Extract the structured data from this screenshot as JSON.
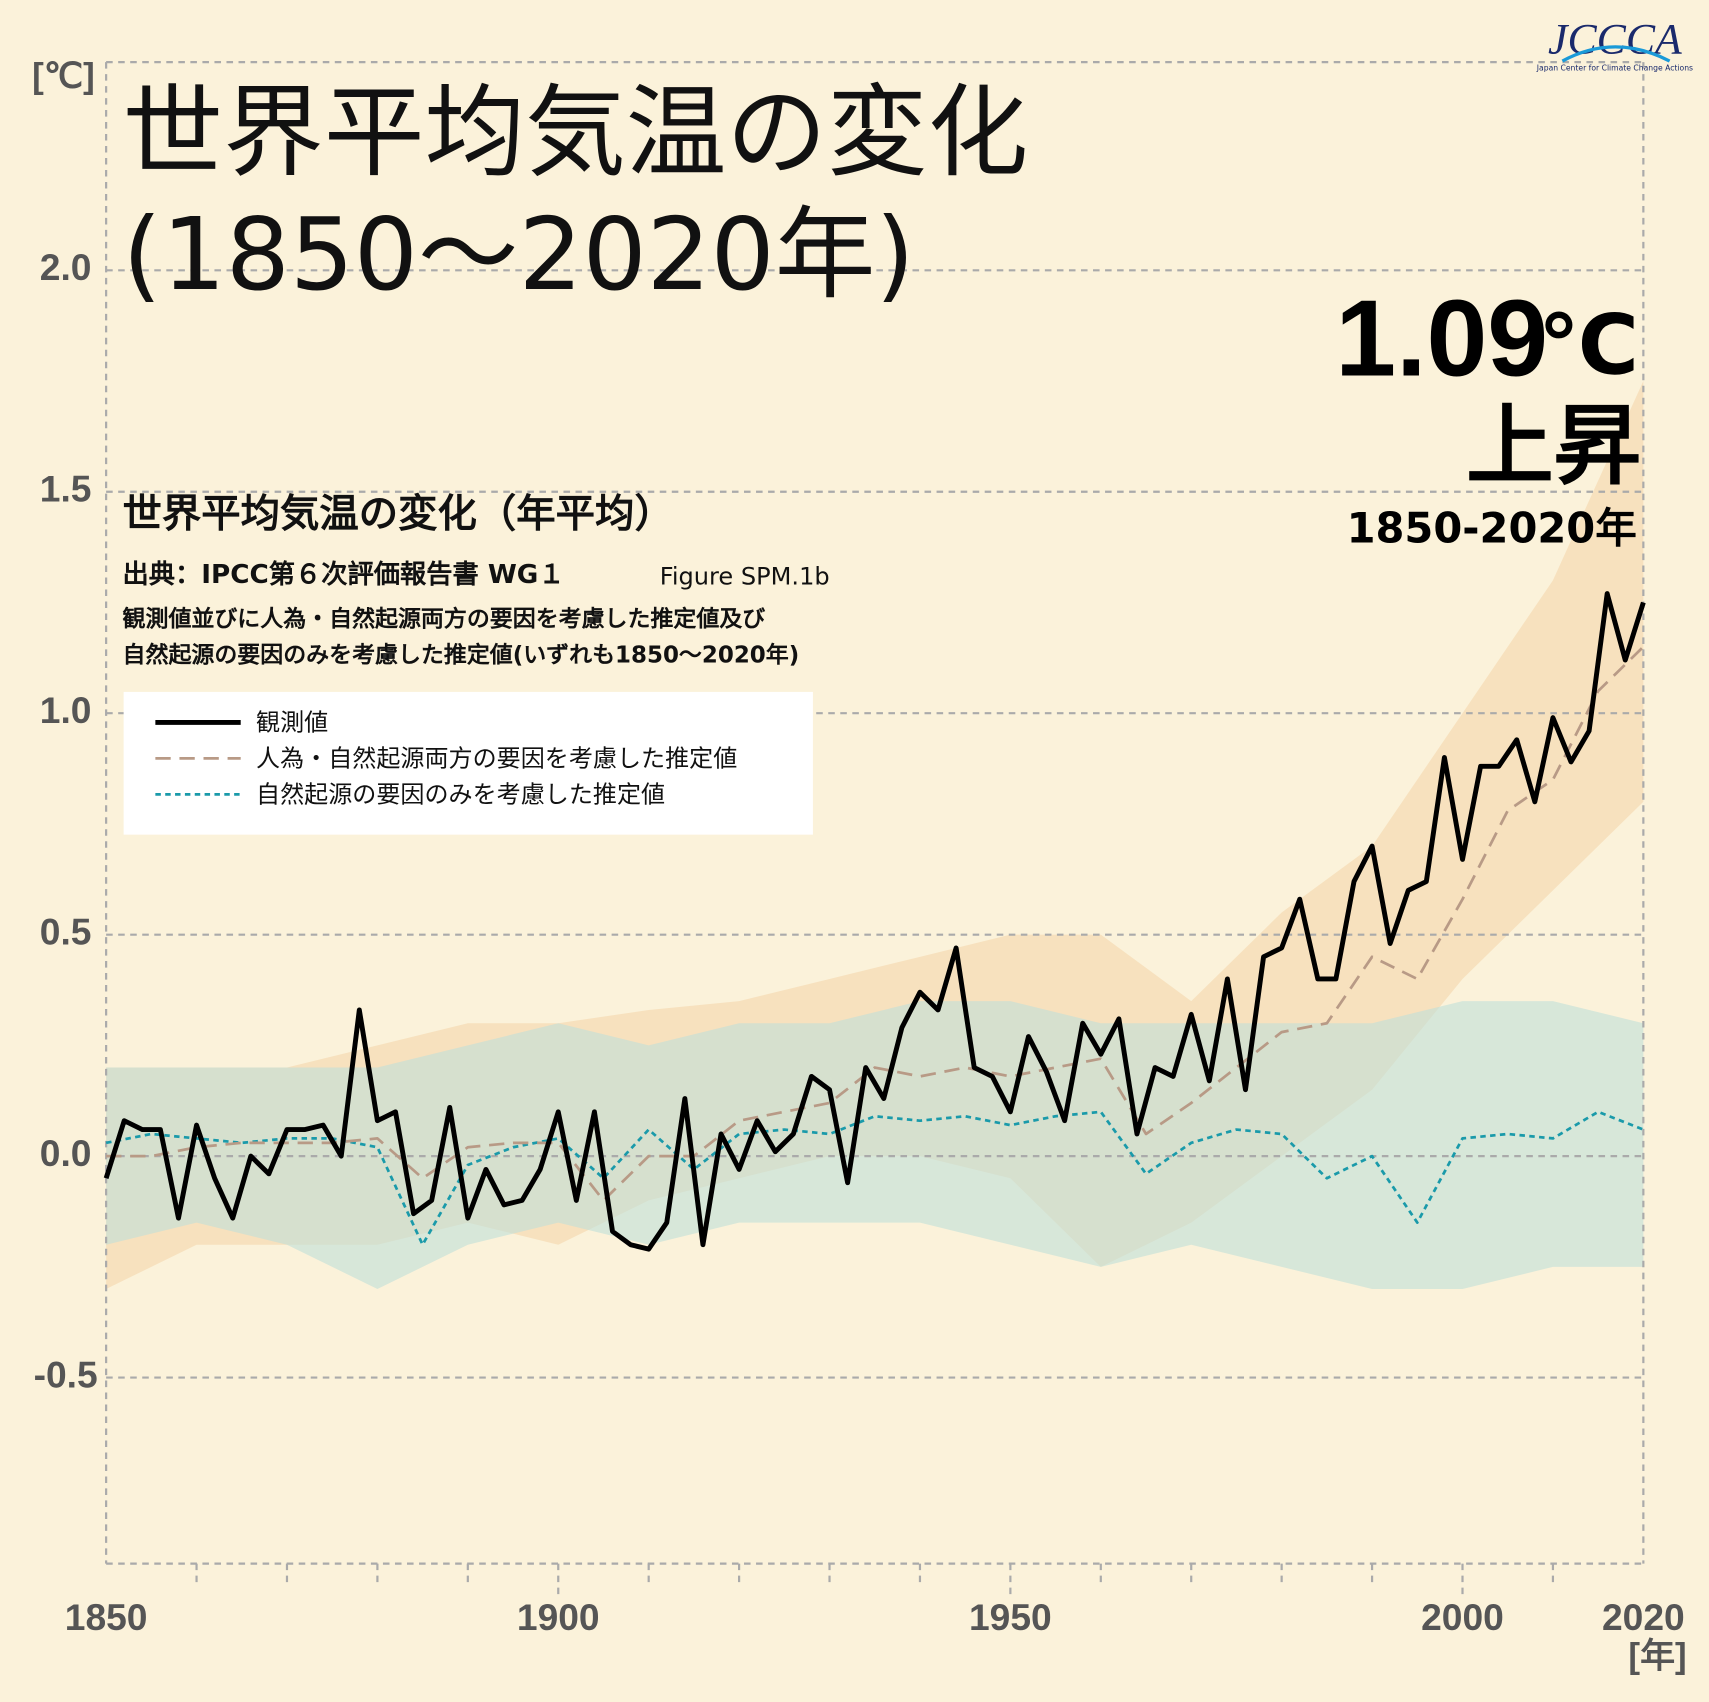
{
  "chart_data": {
    "type": "line",
    "title": "世界平均気温の変化",
    "subtitle": "(1850～2020年)",
    "headline_value": "1.09",
    "headline_unit": "℃",
    "headline_word": "上昇",
    "headline_period": "1850-2020年",
    "inner_title": "世界平均気温の変化（年平均）",
    "source": "出典：IPCC第６次評価報告書 WG１",
    "source_figure": "Figure SPM.1b",
    "description": [
      "観測値並びに人為・自然起源両方の要因を考慮した推定値及び",
      "自然起源の要因のみを考慮した推定値(いずれも1850～2020年)"
    ],
    "y_label": "[℃]",
    "x_label": "[年]",
    "logo": "JCCCA",
    "logo_caption": "Japan Center for Climate Change Actions",
    "xlim": [
      1850,
      2020
    ],
    "xticks": [
      1850,
      1900,
      1950,
      2000,
      2020
    ],
    "xminorticks": [
      1860,
      1870,
      1880,
      1890,
      1910,
      1920,
      1930,
      1940,
      1960,
      1970,
      1980,
      1990,
      2010
    ],
    "ylim": [
      -0.92,
      2.47
    ],
    "yticks": [
      -0.5,
      {
        "value": 0,
        "label": "0.0"
      },
      0.5,
      {
        "value": 1,
        "label": "1.0"
      },
      1.5,
      {
        "value": 2,
        "label": "2.0"
      }
    ],
    "grid": true,
    "x": [
      1850,
      1852,
      1854,
      1856,
      1858,
      1860,
      1862,
      1864,
      1866,
      1868,
      1870,
      1872,
      1874,
      1876,
      1878,
      1880,
      1882,
      1884,
      1886,
      1888,
      1890,
      1892,
      1894,
      1896,
      1898,
      1900,
      1902,
      1904,
      1906,
      1908,
      1910,
      1912,
      1914,
      1916,
      1918,
      1920,
      1922,
      1924,
      1926,
      1928,
      1930,
      1932,
      1934,
      1936,
      1938,
      1940,
      1942,
      1944,
      1946,
      1948,
      1950,
      1952,
      1954,
      1956,
      1958,
      1960,
      1962,
      1964,
      1966,
      1968,
      1970,
      1972,
      1974,
      1976,
      1978,
      1980,
      1982,
      1984,
      1986,
      1988,
      1990,
      1992,
      1994,
      1996,
      1998,
      2000,
      2002,
      2004,
      2006,
      2008,
      2010,
      2012,
      2014,
      2016,
      2018,
      2020
    ],
    "series": [
      {
        "name": "観測値",
        "color": "#000000",
        "style": "solid",
        "values": [
          -0.05,
          0.08,
          0.06,
          0.06,
          -0.14,
          0.07,
          -0.05,
          -0.14,
          0.0,
          -0.04,
          0.06,
          0.06,
          0.07,
          0.0,
          0.33,
          0.08,
          0.1,
          -0.13,
          -0.1,
          0.11,
          -0.14,
          -0.03,
          -0.11,
          -0.1,
          -0.03,
          0.1,
          -0.1,
          0.1,
          -0.17,
          -0.2,
          -0.21,
          -0.15,
          0.13,
          -0.2,
          0.05,
          -0.03,
          0.08,
          0.01,
          0.05,
          0.18,
          0.15,
          -0.06,
          0.2,
          0.13,
          0.29,
          0.37,
          0.33,
          0.47,
          0.2,
          0.18,
          0.1,
          0.27,
          0.19,
          0.08,
          0.3,
          0.23,
          0.31,
          0.05,
          0.2,
          0.18,
          0.32,
          0.17,
          0.4,
          0.15,
          0.45,
          0.47,
          0.58,
          0.4,
          0.4,
          0.62,
          0.7,
          0.48,
          0.6,
          0.62,
          0.9,
          0.67,
          0.88,
          0.88,
          0.94,
          0.8,
          0.99,
          0.89,
          0.96,
          1.27,
          1.12,
          1.25
        ]
      },
      {
        "name": "人為・自然起源両方の要因を考慮した推定値",
        "color": "#b89a86",
        "style": "dashed",
        "band_color": "#f5d6ab",
        "x": [
          1850,
          1855,
          1860,
          1865,
          1870,
          1875,
          1880,
          1885,
          1890,
          1895,
          1900,
          1905,
          1910,
          1915,
          1920,
          1925,
          1930,
          1935,
          1940,
          1945,
          1950,
          1955,
          1960,
          1965,
          1970,
          1975,
          1980,
          1985,
          1990,
          1995,
          2000,
          2005,
          2010,
          2015,
          2020
        ],
        "values": [
          0.0,
          0.0,
          0.02,
          0.03,
          0.03,
          0.03,
          0.04,
          -0.05,
          0.02,
          0.03,
          0.03,
          -0.1,
          0.0,
          0.0,
          0.08,
          0.1,
          0.12,
          0.2,
          0.18,
          0.2,
          0.18,
          0.2,
          0.22,
          0.05,
          0.12,
          0.2,
          0.28,
          0.3,
          0.45,
          0.4,
          0.58,
          0.78,
          0.85,
          1.05,
          1.15
        ],
        "band_x": [
          1850,
          1860,
          1870,
          1880,
          1890,
          1900,
          1910,
          1920,
          1930,
          1940,
          1950,
          1960,
          1970,
          1980,
          1990,
          2000,
          2010,
          2020
        ],
        "band_high": [
          0.2,
          0.2,
          0.2,
          0.25,
          0.3,
          0.3,
          0.33,
          0.35,
          0.4,
          0.45,
          0.5,
          0.5,
          0.35,
          0.55,
          0.7,
          1.0,
          1.3,
          1.75
        ],
        "band_low": [
          -0.3,
          -0.2,
          -0.2,
          -0.2,
          -0.15,
          -0.2,
          -0.1,
          -0.05,
          0.0,
          0.0,
          -0.05,
          -0.25,
          -0.15,
          0.0,
          0.15,
          0.4,
          0.6,
          0.8
        ]
      },
      {
        "name": "自然起源の要因のみを考慮した推定値",
        "color": "#1a9aaa",
        "style": "dotted",
        "band_color": "#bfe0d8",
        "x": [
          1850,
          1855,
          1860,
          1865,
          1870,
          1875,
          1880,
          1885,
          1890,
          1895,
          1900,
          1905,
          1910,
          1915,
          1920,
          1925,
          1930,
          1935,
          1940,
          1945,
          1950,
          1955,
          1960,
          1965,
          1970,
          1975,
          1980,
          1985,
          1990,
          1995,
          2000,
          2005,
          2010,
          2015,
          2020
        ],
        "values": [
          0.03,
          0.05,
          0.04,
          0.03,
          0.04,
          0.04,
          0.02,
          -0.2,
          -0.02,
          0.02,
          0.04,
          -0.05,
          0.06,
          -0.03,
          0.05,
          0.06,
          0.05,
          0.09,
          0.08,
          0.09,
          0.07,
          0.09,
          0.1,
          -0.04,
          0.03,
          0.06,
          0.05,
          -0.05,
          0.0,
          -0.15,
          0.04,
          0.05,
          0.04,
          0.1,
          0.06
        ],
        "band_x": [
          1850,
          1860,
          1870,
          1880,
          1890,
          1900,
          1910,
          1920,
          1930,
          1940,
          1950,
          1960,
          1970,
          1980,
          1990,
          2000,
          2010,
          2020
        ],
        "band_high": [
          0.2,
          0.2,
          0.2,
          0.2,
          0.25,
          0.3,
          0.25,
          0.3,
          0.3,
          0.35,
          0.35,
          0.3,
          0.3,
          0.3,
          0.3,
          0.35,
          0.35,
          0.3
        ],
        "band_low": [
          -0.2,
          -0.15,
          -0.2,
          -0.3,
          -0.2,
          -0.15,
          -0.2,
          -0.15,
          -0.15,
          -0.15,
          -0.2,
          -0.25,
          -0.2,
          -0.25,
          -0.3,
          -0.3,
          -0.25,
          -0.25
        ]
      }
    ]
  }
}
